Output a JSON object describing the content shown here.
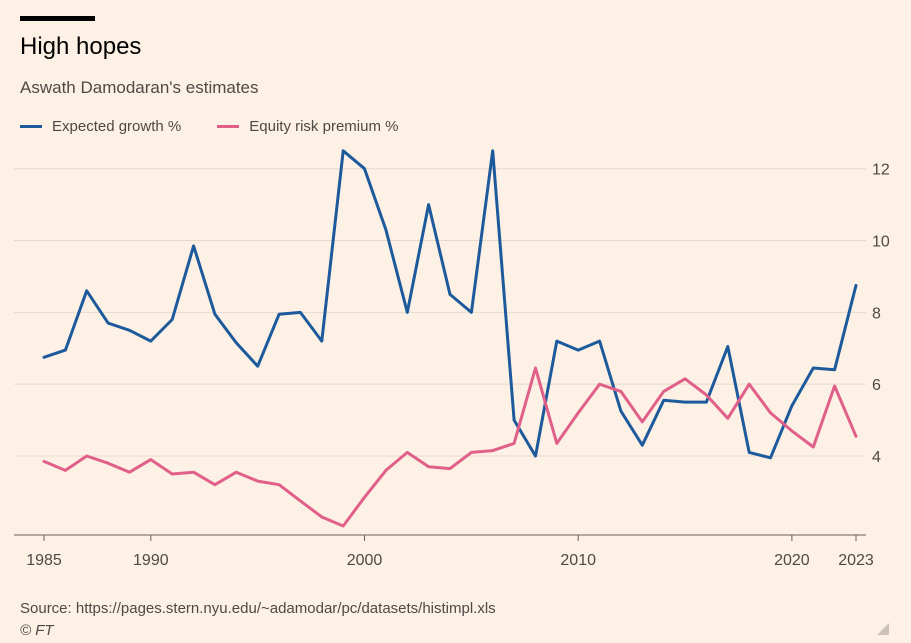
{
  "header": {
    "title": "High hopes",
    "subtitle": "Aswath Damodaran's estimates"
  },
  "legend": {
    "items": [
      {
        "label": "Expected growth %",
        "color": "#1d5a9c"
      },
      {
        "label": "Equity risk premium %",
        "color": "#e0608a"
      }
    ]
  },
  "footer": {
    "source": "Source: https://pages.stern.nyu.edu/~adamodar/pc/datasets/histimpl.xls",
    "credit": "© FT"
  },
  "chart_data": {
    "type": "line",
    "x": [
      1985,
      1986,
      1987,
      1988,
      1989,
      1990,
      1991,
      1992,
      1993,
      1994,
      1995,
      1996,
      1997,
      1998,
      1999,
      2000,
      2001,
      2002,
      2003,
      2004,
      2005,
      2006,
      2007,
      2008,
      2009,
      2010,
      2011,
      2012,
      2013,
      2014,
      2015,
      2016,
      2017,
      2018,
      2019,
      2020,
      2021,
      2022,
      2023
    ],
    "series": [
      {
        "name": "Expected growth %",
        "color": "#1d5a9c",
        "values": [
          6.75,
          6.95,
          8.6,
          7.7,
          7.5,
          7.2,
          7.8,
          9.85,
          7.95,
          7.15,
          6.5,
          7.95,
          8.0,
          7.2,
          12.5,
          12.0,
          10.3,
          8.0,
          11.0,
          8.5,
          8.0,
          12.5,
          5.0,
          4.0,
          7.2,
          6.95,
          7.2,
          5.25,
          4.3,
          5.55,
          5.5,
          5.5,
          7.05,
          4.1,
          3.95,
          5.4,
          6.45,
          6.4,
          8.75
        ]
      },
      {
        "name": "Equity risk premium %",
        "color": "#e0608a",
        "values": [
          3.85,
          3.6,
          4.0,
          3.8,
          3.55,
          3.9,
          3.5,
          3.55,
          3.2,
          3.55,
          3.3,
          3.2,
          2.75,
          2.3,
          2.05,
          2.85,
          3.6,
          4.1,
          3.7,
          3.65,
          4.1,
          4.15,
          4.35,
          6.45,
          4.35,
          5.2,
          6.0,
          5.8,
          4.95,
          5.8,
          6.15,
          5.7,
          5.05,
          6.0,
          5.2,
          4.7,
          4.25,
          5.95,
          4.55
        ]
      }
    ],
    "y_ticks": [
      4,
      6,
      8,
      10,
      12
    ],
    "x_ticks": [
      1985,
      1990,
      2000,
      2010,
      2020,
      2023
    ],
    "ylim": [
      1.8,
      12.8
    ],
    "xlim": [
      1985,
      2023
    ],
    "y_axis_side": "right",
    "grid": true
  }
}
